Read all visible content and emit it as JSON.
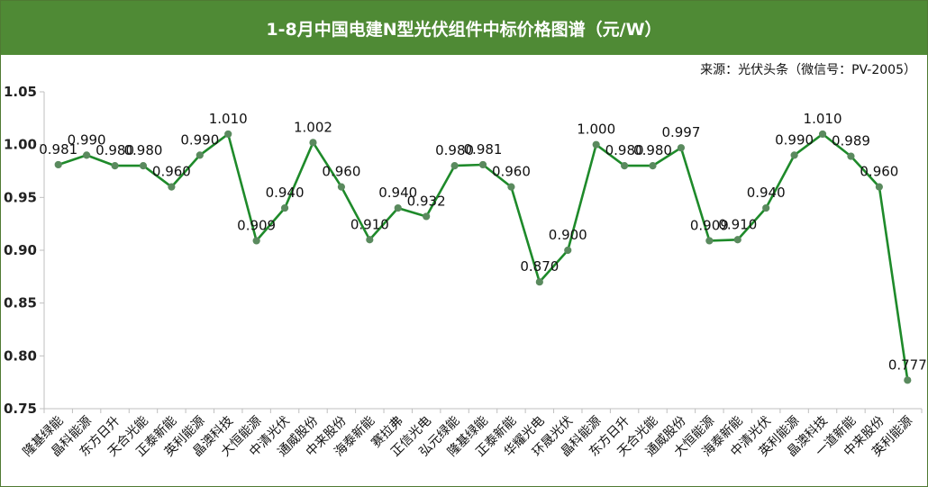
{
  "title": "1-8月中国电建N型光伏组件中标价格图谱（元/W）",
  "source": "来源：光伏头条（微信号：PV-2005）",
  "colors": {
    "header_bg": "#4f8a35",
    "line": "#1e8a2a",
    "marker": "#5a8a5e",
    "axis": "#bfbfbf"
  },
  "chart_data": {
    "type": "line",
    "title": "1-8月中国电建N型光伏组件中标价格图谱（元/W）",
    "xlabel": "",
    "ylabel": "",
    "ylim": [
      0.75,
      1.05
    ],
    "yticks": [
      "1.05",
      "1.00",
      "0.95",
      "0.90",
      "0.85",
      "0.80",
      "0.75"
    ],
    "grid": false,
    "categories": [
      "隆基绿能",
      "晶科能源",
      "东方日升",
      "天合光能",
      "正泰新能",
      "英利能源",
      "晶澳科技",
      "大恒能源",
      "中清光伏",
      "通威股份",
      "中来股份",
      "海泰新能",
      "赛拉弗",
      "正信光电",
      "弘元绿能",
      "隆基绿能",
      "正泰新能",
      "华耀光电",
      "环晟光伏",
      "晶科能源",
      "东方日升",
      "天合光能",
      "通威股份",
      "大恒能源",
      "海泰新能",
      "中清光伏",
      "英利能源",
      "晶澳科技",
      "一道新能",
      "中来股份",
      "英利能源"
    ],
    "values": [
      0.981,
      0.99,
      0.98,
      0.98,
      0.96,
      0.99,
      1.01,
      0.909,
      0.94,
      1.002,
      0.96,
      0.91,
      0.94,
      0.932,
      0.98,
      0.981,
      0.96,
      0.87,
      0.9,
      1.0,
      0.98,
      0.98,
      0.997,
      0.909,
      0.91,
      0.94,
      0.99,
      1.01,
      0.989,
      0.96,
      0.777
    ],
    "labels": [
      "0.981",
      "0.990",
      "0.980",
      "0.980",
      "0.960",
      "0.990",
      "1.010",
      "0.909",
      "0.940",
      "1.002",
      "0.960",
      "0.910",
      "0.940",
      "0.932",
      "0.980",
      "0.981",
      "0.960",
      "0.870",
      "0.900",
      "1.000",
      "0.980",
      "0.980",
      "0.997",
      "0.909",
      "0.910",
      "0.940",
      "0.990",
      "1.010",
      "0.989",
      "0.960",
      "0.777"
    ]
  }
}
